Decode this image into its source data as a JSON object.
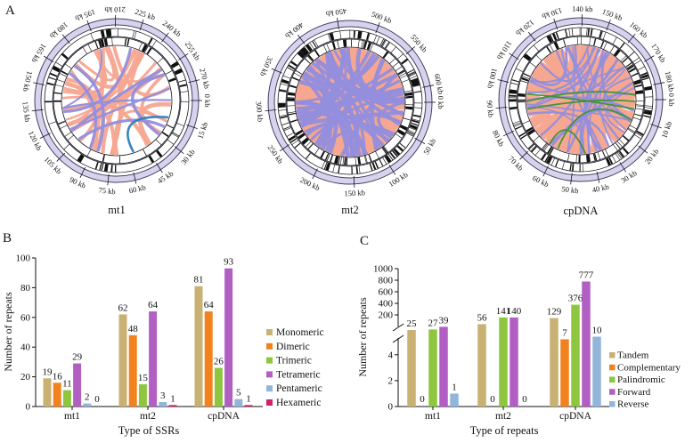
{
  "figure": {
    "panel_letters": {
      "a": "A",
      "b": "B",
      "c": "C"
    }
  },
  "colors": {
    "lavender_ring": "#D8D3EC",
    "ring_border": "#3E3D63",
    "track_line": "#15151F",
    "axis": "#111111",
    "chord_salmon": "#F6A690",
    "chord_purple": "#938EDD",
    "chord_blue": "#2E7EC2",
    "chord_green": "#3F9230"
  },
  "chart_data": [
    {
      "id": "circos-panel",
      "type": "chord",
      "title": "",
      "plots": [
        {
          "label": "mt1",
          "total_kb": 281,
          "tick_step_kb": 15,
          "tick_labels": [
            "0 kb",
            "15 kb",
            "30 kb",
            "45 kb",
            "60 kb",
            "75 kb",
            "90 kb",
            "105 kb",
            "120 kb",
            "135 kb",
            "150 kb",
            "165 kb",
            "180 kb",
            "195 kb",
            "210 kb",
            "225 kb",
            "240 kb",
            "255 kb",
            "270 kb"
          ],
          "seed": 7,
          "blocks": {
            "outer": 26,
            "inner": 22
          },
          "ribbon_sets": [
            {
              "color": "#F6A690",
              "count": 24,
              "width": [
                2.5,
                5
              ]
            },
            {
              "color": "#938EDD",
              "count": 9,
              "width": [
                2,
                3.5
              ]
            },
            {
              "color": "#2E7EC2",
              "count": 1,
              "width": [
                2.6,
                2.6
              ],
              "pairs": [
                [
                  18,
                  72
                ]
              ]
            }
          ]
        },
        {
          "label": "mt2",
          "total_kb": 620,
          "tick_step_kb": 50,
          "tick_labels": [
            "0 kb",
            "50 kb",
            "100 kb",
            "150 kb",
            "200 kb",
            "250 kb",
            "300 kb",
            "350 kb",
            "400 kb",
            "450 kb",
            "500 kb",
            "550 kb",
            "600 kb"
          ],
          "seed": 3,
          "blocks": {
            "outer": 60,
            "inner": 55
          },
          "ribbon_sets": [
            {
              "color": "#F6A690",
              "count": 115,
              "width": [
                4,
                9
              ]
            },
            {
              "color": "#938EDD",
              "count": 42,
              "width": [
                2.5,
                5
              ]
            }
          ]
        },
        {
          "label": "cpDNA",
          "total_kb": 186,
          "tick_step_kb": 10,
          "tick_labels": [
            "0 kb",
            "10 kb",
            "20 kb",
            "30 kb",
            "40 kb",
            "50 kb",
            "60 kb",
            "70 kb",
            "80 kb",
            "90 kb",
            "100 kb",
            "110 kb",
            "120 kb",
            "130 kb",
            "140 kb",
            "150 kb",
            "160 kb",
            "170 kb",
            "180 kb"
          ],
          "seed": 5,
          "blocks": {
            "outer": 48,
            "inner": 42
          },
          "ribbon_sets": [
            {
              "color": "#F6A690",
              "count": 70,
              "width": [
                3.5,
                9
              ]
            },
            {
              "color": "#938EDD",
              "count": 30,
              "width": [
                1.5,
                3
              ]
            },
            {
              "color": "#3F9230",
              "count": 5,
              "width": [
                1.8,
                1.8
              ],
              "pairs": [
                [
                  170,
                  2
                ],
                [
                  178,
                  355
                ],
                [
                  186,
                  10
                ],
                [
                  115,
                  22
                ],
                [
                  125,
                  85
                ]
              ]
            }
          ]
        }
      ]
    },
    {
      "id": "ssr-types",
      "type": "bar",
      "title": "",
      "xlabel": "Type of SSRs",
      "ylabel": "Number of repeats",
      "categories": [
        "mt1",
        "mt2",
        "cpDNA"
      ],
      "series": [
        {
          "name": "Monomeric",
          "color": "#C8B173",
          "values": [
            19,
            62,
            81
          ]
        },
        {
          "name": "Dimeric",
          "color": "#F1821E",
          "values": [
            16,
            48,
            64
          ]
        },
        {
          "name": "Trimeric",
          "color": "#8EC63F",
          "values": [
            11,
            15,
            26
          ]
        },
        {
          "name": "Tetrameric",
          "color": "#B25FC4",
          "values": [
            29,
            64,
            93
          ]
        },
        {
          "name": "Pentameric",
          "color": "#92B5DA",
          "values": [
            2,
            3,
            5
          ]
        },
        {
          "name": "Hexameric",
          "color": "#CE2168",
          "values": [
            0,
            1,
            1
          ]
        }
      ],
      "ylim": [
        0,
        100
      ],
      "yticks": [
        0,
        20,
        40,
        60,
        80,
        100
      ],
      "grid": false,
      "legend_position": "right"
    },
    {
      "id": "repeat-types",
      "type": "bar",
      "title": "",
      "xlabel": "Type of repeats",
      "ylabel": "Number of repeats",
      "categories": [
        "mt1",
        "mt2",
        "cpDNA"
      ],
      "series": [
        {
          "name": "Tandem",
          "color": "#C8B173",
          "values": [
            25,
            56,
            129
          ]
        },
        {
          "name": "Complementary",
          "color": "#F1821E",
          "values": [
            0,
            0,
            7
          ]
        },
        {
          "name": "Palindromic",
          "color": "#8EC63F",
          "values": [
            27,
            141,
            376
          ]
        },
        {
          "name": "Forward",
          "color": "#B25FC4",
          "values": [
            39,
            140,
            777
          ]
        },
        {
          "name": "Reverse",
          "color": "#92B5DA",
          "values": [
            1,
            0,
            10
          ]
        }
      ],
      "axis_break": {
        "lower_ticks": [
          0,
          2,
          4
        ],
        "upper_ticks": [
          200,
          400,
          600,
          800,
          1000
        ]
      },
      "ylim": [
        0,
        1000
      ],
      "grid": false,
      "legend_position": "right"
    }
  ]
}
